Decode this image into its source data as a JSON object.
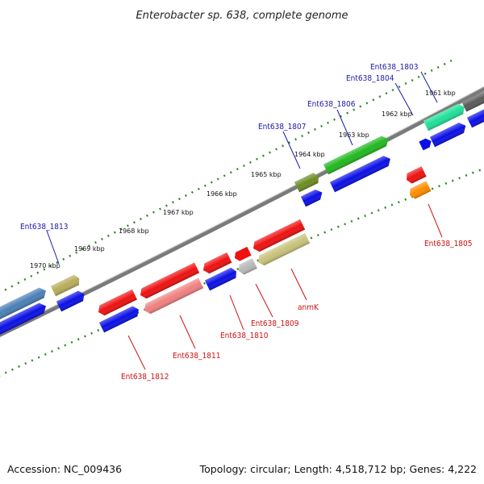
{
  "title": "Enterobacter sp. 638, complete genome",
  "footer": {
    "accession": "Accession: NC_009436",
    "summary": "Topology: circular; Length: 4,518,712 bp; Genes: 4,222"
  },
  "colors": {
    "forward_label": "#1a1aa6",
    "reverse_label": "#cc1111",
    "tick": "#228b22",
    "backbone": "#7a7a7a"
  },
  "ticks": [
    {
      "label": "1961 kbp"
    },
    {
      "label": "1962 kbp"
    },
    {
      "label": "1963 kbp"
    },
    {
      "label": "1964 kbp"
    },
    {
      "label": "1965 kbp"
    },
    {
      "label": "1966 kbp"
    },
    {
      "label": "1967 kbp"
    },
    {
      "label": "1968 kbp"
    },
    {
      "label": "1969 kbp"
    },
    {
      "label": "1970 kbp"
    }
  ],
  "genes": [
    {
      "label": "Ent638_1803",
      "strand": "forward"
    },
    {
      "label": "Ent638_1804",
      "strand": "forward"
    },
    {
      "label": "Ent638_1806",
      "strand": "forward"
    },
    {
      "label": "Ent638_1807",
      "strand": "forward"
    },
    {
      "label": "Ent638_1813",
      "strand": "forward"
    },
    {
      "label": "Ent638_1805",
      "strand": "reverse"
    },
    {
      "label": "anmK",
      "strand": "reverse"
    },
    {
      "label": "Ent638_1809",
      "strand": "reverse"
    },
    {
      "label": "Ent638_1810",
      "strand": "reverse"
    },
    {
      "label": "Ent638_1811",
      "strand": "reverse"
    },
    {
      "label": "Ent638_1812",
      "strand": "reverse"
    }
  ]
}
